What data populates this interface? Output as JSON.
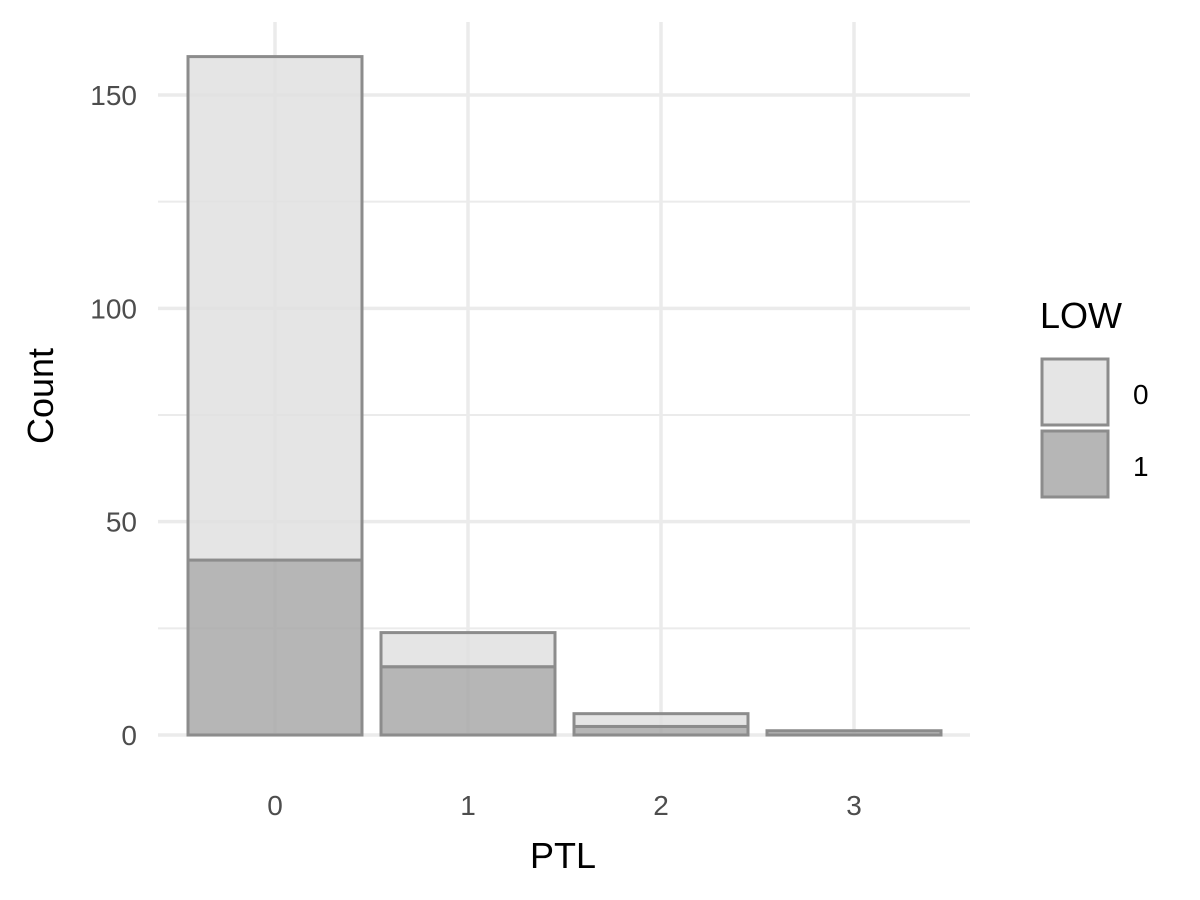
{
  "chart_data": {
    "type": "bar",
    "stacked": true,
    "categories": [
      "0",
      "1",
      "2",
      "3"
    ],
    "xlabel": "PTL",
    "ylabel": "Count",
    "ylim": [
      0,
      160
    ],
    "yticks": [
      0,
      50,
      100,
      150
    ],
    "grid": true,
    "legend": {
      "title": "LOW",
      "placement": "right",
      "entries": [
        "0",
        "1"
      ]
    },
    "series": [
      {
        "name": "0",
        "values": [
          118,
          8,
          3,
          0
        ],
        "color": "#e0e0e0"
      },
      {
        "name": "1",
        "values": [
          41,
          16,
          2,
          1
        ],
        "color": "#a9a9a9"
      }
    ],
    "outline_color": "#8c8c8c",
    "grid_color": "#ebebeb"
  }
}
